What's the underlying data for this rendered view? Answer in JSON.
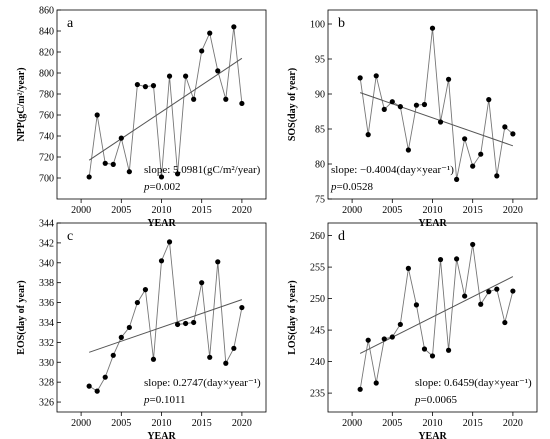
{
  "chart_data": [
    {
      "type": "line",
      "panel_letter": "a",
      "xlabel": "YEAR",
      "ylabel": "NPP(gC/m²/year)",
      "xlim": [
        1997,
        2023
      ],
      "ylim": [
        680,
        860
      ],
      "xticks": [
        2000,
        2005,
        2010,
        2015,
        2020
      ],
      "yticks": [
        700,
        720,
        740,
        760,
        780,
        800,
        820,
        840,
        860
      ],
      "x": [
        2001,
        2002,
        2003,
        2004,
        2005,
        2006,
        2007,
        2008,
        2009,
        2010,
        2011,
        2012,
        2013,
        2014,
        2015,
        2016,
        2017,
        2018,
        2019,
        2020
      ],
      "series": [
        {
          "values": [
            701,
            760,
            714,
            713,
            738,
            706,
            789,
            787,
            788,
            701,
            797,
            704,
            797,
            775,
            821,
            838,
            802,
            775,
            844,
            771
          ]
        }
      ],
      "trend": {
        "x": [
          2001,
          2020
        ],
        "y": [
          717,
          814
        ]
      },
      "annotation": {
        "slope_text": "slope: 5.0981(gC/m²/year)",
        "p_text": "=0.002"
      }
    },
    {
      "type": "line",
      "panel_letter": "b",
      "xlabel": "YEAR",
      "ylabel": "SOS(day of year)",
      "xlim": [
        1997,
        2023
      ],
      "ylim": [
        75,
        102
      ],
      "xticks": [
        2000,
        2005,
        2010,
        2015,
        2020
      ],
      "yticks": [
        75,
        80,
        85,
        90,
        95,
        100
      ],
      "x": [
        2001,
        2002,
        2003,
        2004,
        2005,
        2006,
        2007,
        2008,
        2009,
        2010,
        2011,
        2012,
        2013,
        2014,
        2015,
        2016,
        2017,
        2018,
        2019,
        2020
      ],
      "series": [
        {
          "values": [
            92.3,
            84.2,
            92.6,
            87.8,
            88.9,
            88.2,
            82.0,
            88.4,
            88.5,
            99.4,
            86.0,
            92.1,
            77.8,
            83.6,
            79.7,
            81.4,
            89.2,
            78.3,
            85.3,
            84.3
          ]
        }
      ],
      "trend": {
        "x": [
          2001,
          2020
        ],
        "y": [
          90.2,
          82.6
        ]
      },
      "annotation": {
        "slope_text": "slope: −0.4004(day×year⁻¹)",
        "p_text": "=0.0528"
      }
    },
    {
      "type": "line",
      "panel_letter": "c",
      "xlabel": "YEAR",
      "ylabel": "EOS(day of year)",
      "xlim": [
        1997,
        2023
      ],
      "ylim": [
        325,
        344
      ],
      "xticks": [
        2000,
        2005,
        2010,
        2015,
        2020
      ],
      "yticks": [
        326,
        328,
        330,
        332,
        334,
        336,
        338,
        340,
        342,
        344
      ],
      "x": [
        2001,
        2002,
        2003,
        2004,
        2005,
        2006,
        2007,
        2008,
        2009,
        2010,
        2011,
        2012,
        2013,
        2014,
        2015,
        2016,
        2017,
        2018,
        2019,
        2020
      ],
      "series": [
        {
          "values": [
            327.6,
            327.1,
            328.5,
            330.7,
            332.5,
            333.5,
            336.0,
            337.3,
            330.3,
            340.2,
            342.1,
            333.8,
            333.9,
            334.0,
            338.0,
            330.5,
            340.1,
            329.9,
            331.4,
            335.5
          ]
        }
      ],
      "trend": {
        "x": [
          2001,
          2020
        ],
        "y": [
          331.0,
          336.3
        ]
      },
      "annotation": {
        "slope_text": "slope: 0.2747(day×year⁻¹)",
        "p_text": "=0.1011"
      }
    },
    {
      "type": "line",
      "panel_letter": "d",
      "xlabel": "YEAR",
      "ylabel": "LOS(day of year)",
      "xlim": [
        1997,
        2023
      ],
      "ylim": [
        232,
        262
      ],
      "xticks": [
        2000,
        2005,
        2010,
        2015,
        2020
      ],
      "yticks": [
        235,
        240,
        245,
        250,
        255,
        260
      ],
      "x": [
        2001,
        2002,
        2003,
        2004,
        2005,
        2006,
        2007,
        2008,
        2009,
        2010,
        2011,
        2012,
        2013,
        2014,
        2015,
        2016,
        2017,
        2018,
        2019,
        2020
      ],
      "series": [
        {
          "values": [
            235.6,
            243.4,
            236.6,
            243.6,
            243.9,
            245.9,
            254.8,
            249.0,
            242.0,
            240.9,
            256.2,
            241.8,
            256.3,
            250.4,
            258.6,
            249.1,
            251.1,
            251.5,
            246.2,
            251.2
          ]
        }
      ],
      "trend": {
        "x": [
          2001,
          2020
        ],
        "y": [
          241.3,
          253.5
        ]
      },
      "annotation": {
        "slope_text": "slope: 0.6459(day×year⁻¹)",
        "p_text": "=0.0065"
      }
    }
  ]
}
